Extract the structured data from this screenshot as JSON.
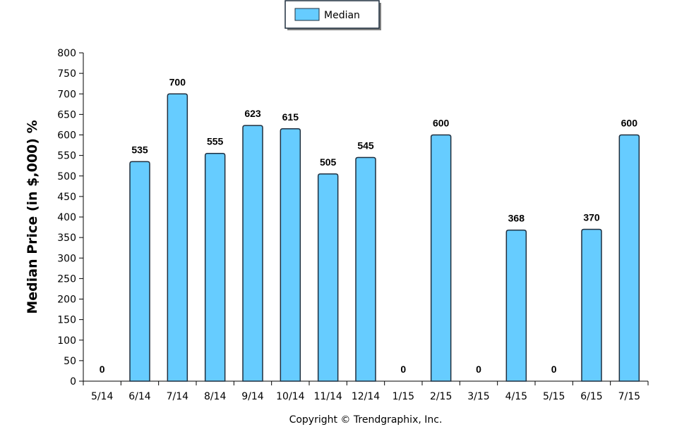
{
  "chart_data": {
    "type": "bar",
    "categories": [
      "5/14",
      "6/14",
      "7/14",
      "8/14",
      "9/14",
      "10/14",
      "11/14",
      "12/14",
      "1/15",
      "2/15",
      "3/15",
      "4/15",
      "5/15",
      "6/15",
      "7/15"
    ],
    "series": [
      {
        "name": "Median",
        "values": [
          0,
          535,
          700,
          555,
          623,
          615,
          505,
          545,
          0,
          600,
          0,
          368,
          0,
          370,
          600
        ]
      }
    ],
    "ylabel": "Median Price (in $,000) %",
    "xlabel": "",
    "ylim": [
      0,
      800
    ],
    "ytick_step": 50,
    "legend": {
      "placement": "top-center",
      "entries": [
        "Median"
      ]
    },
    "grid": false,
    "bar_color": "#66ccff",
    "bar_edge_color": "#1f2f3f"
  },
  "footer": {
    "copyright": "Copyright © Trendgraphix, Inc."
  }
}
